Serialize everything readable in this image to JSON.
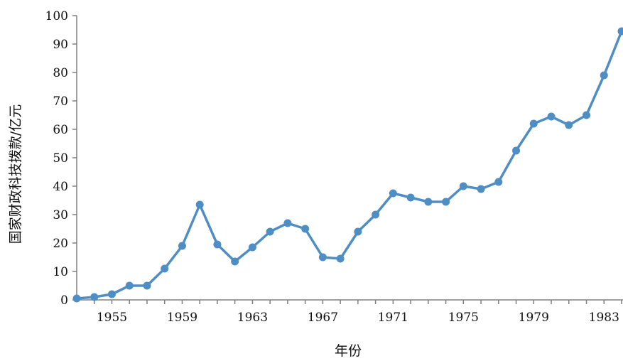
{
  "chart_data": {
    "type": "line",
    "title": "",
    "xlabel": "年份",
    "ylabel": "国家财政科技拨款/亿元",
    "xlim": [
      1953,
      1984
    ],
    "ylim": [
      0,
      100
    ],
    "x_ticks": [
      "1955",
      "1959",
      "1963",
      "1967",
      "1971",
      "1975",
      "1979",
      "1983"
    ],
    "y_ticks": [
      "0",
      "10",
      "20",
      "30",
      "40",
      "50",
      "60",
      "70",
      "80",
      "90",
      "100"
    ],
    "grid": false,
    "legend": "none",
    "series": [
      {
        "color": "#4f8dc5",
        "points": [
          {
            "x": 1953,
            "y": 0.5
          },
          {
            "x": 1954,
            "y": 1
          },
          {
            "x": 1955,
            "y": 2
          },
          {
            "x": 1956,
            "y": 5
          },
          {
            "x": 1957,
            "y": 5
          },
          {
            "x": 1958,
            "y": 11
          },
          {
            "x": 1959,
            "y": 19
          },
          {
            "x": 1960,
            "y": 33.5
          },
          {
            "x": 1961,
            "y": 19.5
          },
          {
            "x": 1962,
            "y": 13.5
          },
          {
            "x": 1963,
            "y": 18.5
          },
          {
            "x": 1964,
            "y": 24
          },
          {
            "x": 1965,
            "y": 27
          },
          {
            "x": 1966,
            "y": 25
          },
          {
            "x": 1967,
            "y": 15
          },
          {
            "x": 1968,
            "y": 14.5
          },
          {
            "x": 1969,
            "y": 24
          },
          {
            "x": 1970,
            "y": 30
          },
          {
            "x": 1971,
            "y": 37.5
          },
          {
            "x": 1972,
            "y": 36
          },
          {
            "x": 1973,
            "y": 34.5
          },
          {
            "x": 1974,
            "y": 34.5
          },
          {
            "x": 1975,
            "y": 40
          },
          {
            "x": 1976,
            "y": 39
          },
          {
            "x": 1977,
            "y": 41.5
          },
          {
            "x": 1978,
            "y": 52.5
          },
          {
            "x": 1979,
            "y": 62
          },
          {
            "x": 1980,
            "y": 64.5
          },
          {
            "x": 1981,
            "y": 61.5
          },
          {
            "x": 1982,
            "y": 65
          },
          {
            "x": 1983,
            "y": 79
          },
          {
            "x": 1984,
            "y": 94.5
          }
        ]
      }
    ]
  }
}
